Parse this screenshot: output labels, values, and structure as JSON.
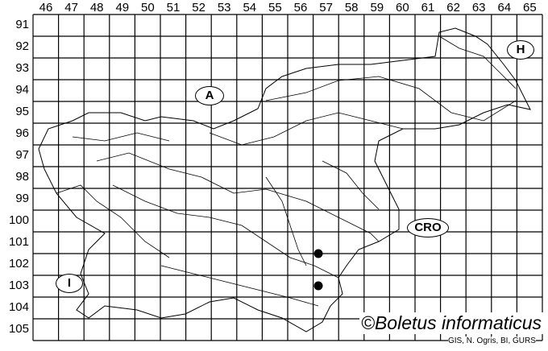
{
  "grid": {
    "columns": [
      "46",
      "47",
      "48",
      "49",
      "50",
      "51",
      "52",
      "53",
      "54",
      "55",
      "56",
      "57",
      "58",
      "59",
      "60",
      "61",
      "62",
      "63",
      "64",
      "65"
    ],
    "rows": [
      "91",
      "92",
      "93",
      "94",
      "95",
      "96",
      "97",
      "98",
      "99",
      "100",
      "101",
      "102",
      "103",
      "104",
      "105"
    ]
  },
  "regions": {
    "austria": "A",
    "hungary": "H",
    "croatia": "CRO",
    "italy": "I"
  },
  "records": [
    {
      "column": "57",
      "row": "101"
    },
    {
      "column": "57",
      "row": "103"
    }
  ],
  "copyright": "©Boletus informaticus",
  "credit": "GIS, N. Ogris, BI, GURS"
}
